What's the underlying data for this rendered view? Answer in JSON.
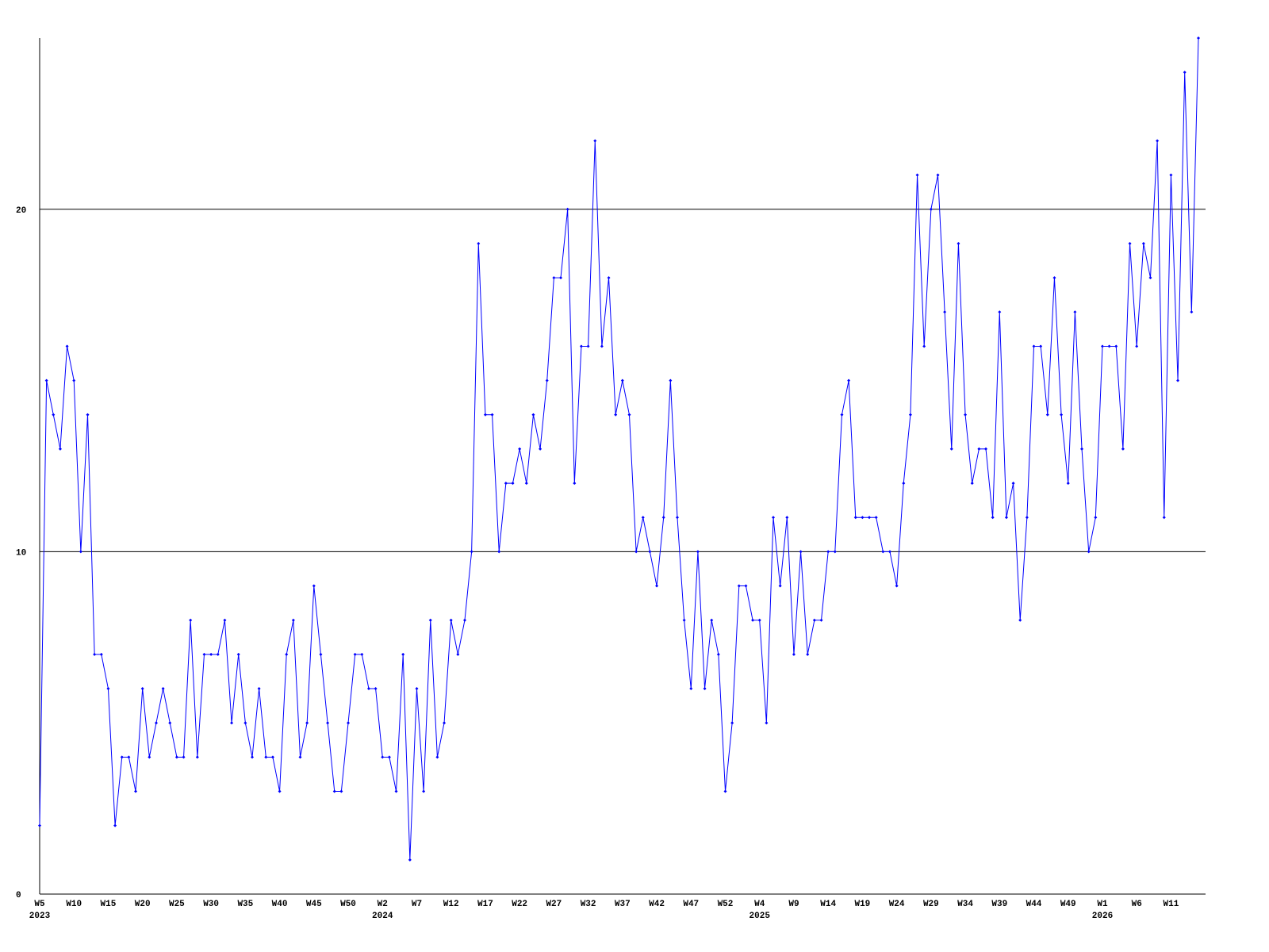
{
  "chart_data": {
    "type": "line",
    "categories": [
      "W5",
      null,
      null,
      null,
      null,
      "W10",
      null,
      null,
      null,
      null,
      "W15",
      null,
      null,
      null,
      null,
      "W20",
      null,
      null,
      null,
      null,
      "W25",
      null,
      null,
      null,
      null,
      "W30",
      null,
      null,
      null,
      null,
      "W35",
      null,
      null,
      null,
      null,
      "W40",
      null,
      null,
      null,
      null,
      "W45",
      null,
      null,
      null,
      null,
      "W50",
      null,
      null,
      null,
      null,
      "W2",
      null,
      null,
      null,
      null,
      "W7",
      null,
      null,
      null,
      null,
      "W12",
      null,
      null,
      null,
      null,
      "W17",
      null,
      null,
      null,
      null,
      "W22",
      null,
      null,
      null,
      null,
      "W27",
      null,
      null,
      null,
      null,
      "W32",
      null,
      null,
      null,
      null,
      "W37",
      null,
      null,
      null,
      null,
      "W42",
      null,
      null,
      null,
      null,
      "W47",
      null,
      null,
      null,
      null,
      "W52",
      null,
      null,
      null,
      null,
      "W4",
      null,
      null,
      null,
      null,
      "W9",
      null,
      null,
      null,
      null,
      "W14",
      null,
      null,
      null,
      null,
      "W19",
      null,
      null,
      null,
      null,
      "W24",
      null,
      null,
      null,
      null,
      "W29",
      null,
      null,
      null,
      null,
      "W34",
      null,
      null,
      null,
      null,
      "W39",
      null,
      null,
      null,
      null,
      "W44",
      null,
      null,
      null,
      null,
      "W49",
      null,
      null,
      null,
      null,
      "W1",
      null,
      null,
      null,
      null,
      "W6",
      null,
      null,
      null,
      null,
      "W11",
      null,
      null,
      null,
      null
    ],
    "category_years": [
      "2023",
      null,
      null,
      null,
      null,
      null,
      null,
      null,
      null,
      null,
      null,
      null,
      null,
      null,
      null,
      null,
      null,
      null,
      null,
      null,
      null,
      null,
      null,
      null,
      null,
      null,
      null,
      null,
      null,
      null,
      null,
      null,
      null,
      null,
      null,
      null,
      null,
      null,
      null,
      null,
      null,
      null,
      null,
      null,
      null,
      null,
      null,
      null,
      null,
      null,
      "2024",
      null,
      null,
      null,
      null,
      null,
      null,
      null,
      null,
      null,
      null,
      null,
      null,
      null,
      null,
      null,
      null,
      null,
      null,
      null,
      null,
      null,
      null,
      null,
      null,
      null,
      null,
      null,
      null,
      null,
      null,
      null,
      null,
      null,
      null,
      null,
      null,
      null,
      null,
      null,
      null,
      null,
      null,
      null,
      null,
      null,
      null,
      null,
      null,
      null,
      null,
      null,
      null,
      null,
      null,
      "2025",
      null,
      null,
      null,
      null,
      null,
      null,
      null,
      null,
      null,
      null,
      null,
      null,
      null,
      null,
      null,
      null,
      null,
      null,
      null,
      null,
      null,
      null,
      null,
      null,
      null,
      null,
      null,
      null,
      null,
      null,
      null,
      null,
      null,
      null,
      null,
      null,
      null,
      null,
      null,
      null,
      null,
      null,
      null,
      null,
      null,
      null,
      null,
      null,
      null,
      "2026",
      null,
      null,
      null,
      null,
      null,
      null,
      null,
      null,
      null,
      null,
      null,
      null,
      null,
      null
    ],
    "values": [
      2,
      15,
      14,
      13,
      16,
      15,
      10,
      14,
      7,
      7,
      6,
      2,
      4,
      4,
      3,
      6,
      4,
      5,
      6,
      5,
      4,
      4,
      8,
      4,
      7,
      7,
      7,
      8,
      5,
      7,
      5,
      4,
      6,
      4,
      4,
      3,
      7,
      8,
      4,
      5,
      9,
      7,
      5,
      3,
      3,
      5,
      7,
      7,
      6,
      6,
      4,
      4,
      3,
      7,
      1,
      6,
      3,
      8,
      4,
      5,
      8,
      7,
      8,
      10,
      19,
      14,
      14,
      10,
      12,
      12,
      13,
      12,
      14,
      13,
      15,
      18,
      18,
      20,
      12,
      16,
      16,
      22,
      16,
      18,
      14,
      15,
      14,
      10,
      11,
      10,
      9,
      11,
      15,
      11,
      8,
      6,
      10,
      6,
      8,
      7,
      3,
      5,
      9,
      9,
      8,
      8,
      5,
      11,
      9,
      11,
      7,
      10,
      7,
      8,
      8,
      10,
      10,
      14,
      15,
      11,
      11,
      11,
      11,
      10,
      10,
      9,
      12,
      14,
      21,
      16,
      20,
      21,
      17,
      13,
      19,
      14,
      12,
      13,
      13,
      11,
      17,
      11,
      12,
      8,
      11,
      16,
      16,
      14,
      18,
      14,
      12,
      17,
      13,
      10,
      11,
      16,
      16,
      16,
      13,
      19,
      16,
      19,
      18,
      22,
      11,
      21,
      15,
      24,
      17,
      25
    ],
    "color": "#0000ff",
    "ylim": [
      0,
      25
    ],
    "yticks": [
      0,
      10,
      20
    ],
    "grid": true
  }
}
